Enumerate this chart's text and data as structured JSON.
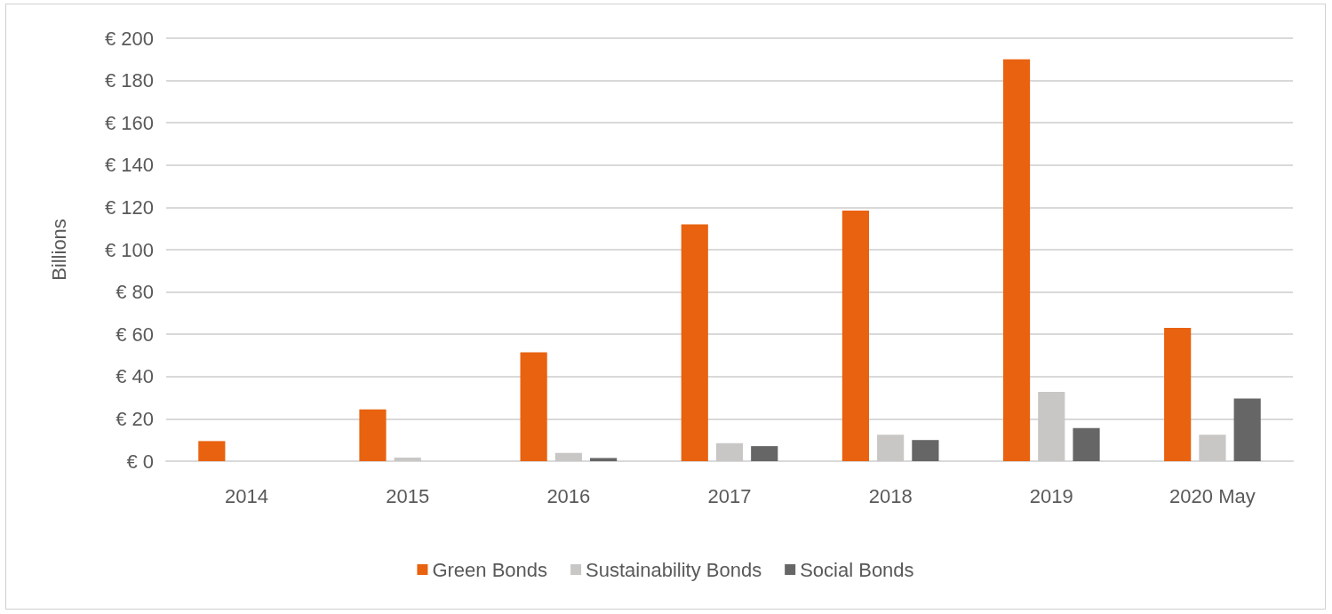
{
  "chart_data": {
    "type": "bar",
    "ylabel": "Billions",
    "categories": [
      "2014",
      "2015",
      "2016",
      "2017",
      "2018",
      "2019",
      "2020 May"
    ],
    "series": [
      {
        "name": "Green Bonds",
        "color": "#e8620f",
        "values": [
          9.5,
          24.5,
          51.5,
          112,
          118.5,
          190,
          63
        ]
      },
      {
        "name": "Sustainability Bonds",
        "color": "#c8c7c5",
        "values": [
          0,
          1.7,
          3.9,
          8.5,
          12.5,
          32.8,
          12.5
        ]
      },
      {
        "name": "Social Bonds",
        "color": "#666666",
        "values": [
          0,
          0,
          1.5,
          7.1,
          10,
          15.7,
          29.6
        ]
      }
    ],
    "ylim": [
      0,
      200
    ],
    "yticks": [
      {
        "value": 0,
        "label": "€ 0"
      },
      {
        "value": 20,
        "label": "€ 20"
      },
      {
        "value": 40,
        "label": "€ 40"
      },
      {
        "value": 60,
        "label": "€ 60"
      },
      {
        "value": 80,
        "label": "€ 80"
      },
      {
        "value": 100,
        "label": "€ 100"
      },
      {
        "value": 120,
        "label": "€ 120"
      },
      {
        "value": 140,
        "label": "€ 140"
      },
      {
        "value": 160,
        "label": "€ 160"
      },
      {
        "value": 180,
        "label": "€ 180"
      },
      {
        "value": 200,
        "label": "€ 200"
      }
    ],
    "grid": "y",
    "legend": "bottom"
  }
}
